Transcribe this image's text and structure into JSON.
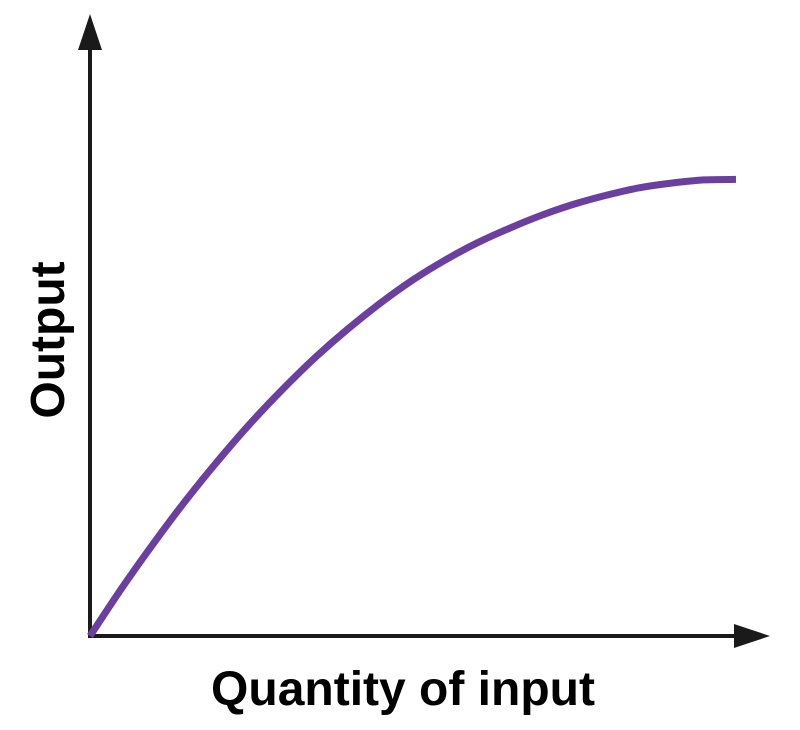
{
  "chart_data": {
    "type": "line",
    "title": "",
    "xlabel": "Quantity of input",
    "ylabel": "Output",
    "xlim": [
      0,
      100
    ],
    "ylim": [
      0,
      100
    ],
    "grid": false,
    "legend": "none",
    "tick_labels": false,
    "series": [
      {
        "color": "#6b3fa0",
        "x": [
          0,
          5,
          10,
          15,
          20,
          25,
          30,
          35,
          40,
          45,
          50,
          55,
          60,
          65,
          70,
          75,
          80,
          85,
          90,
          95,
          100
        ],
        "y": [
          0,
          9.3,
          18.0,
          26.2,
          33.8,
          40.9,
          47.4,
          53.4,
          58.8,
          63.7,
          68.1,
          71.9,
          75.2,
          78.0,
          80.5,
          82.6,
          84.3,
          85.7,
          86.6,
          87.2,
          87.3
        ]
      }
    ]
  }
}
